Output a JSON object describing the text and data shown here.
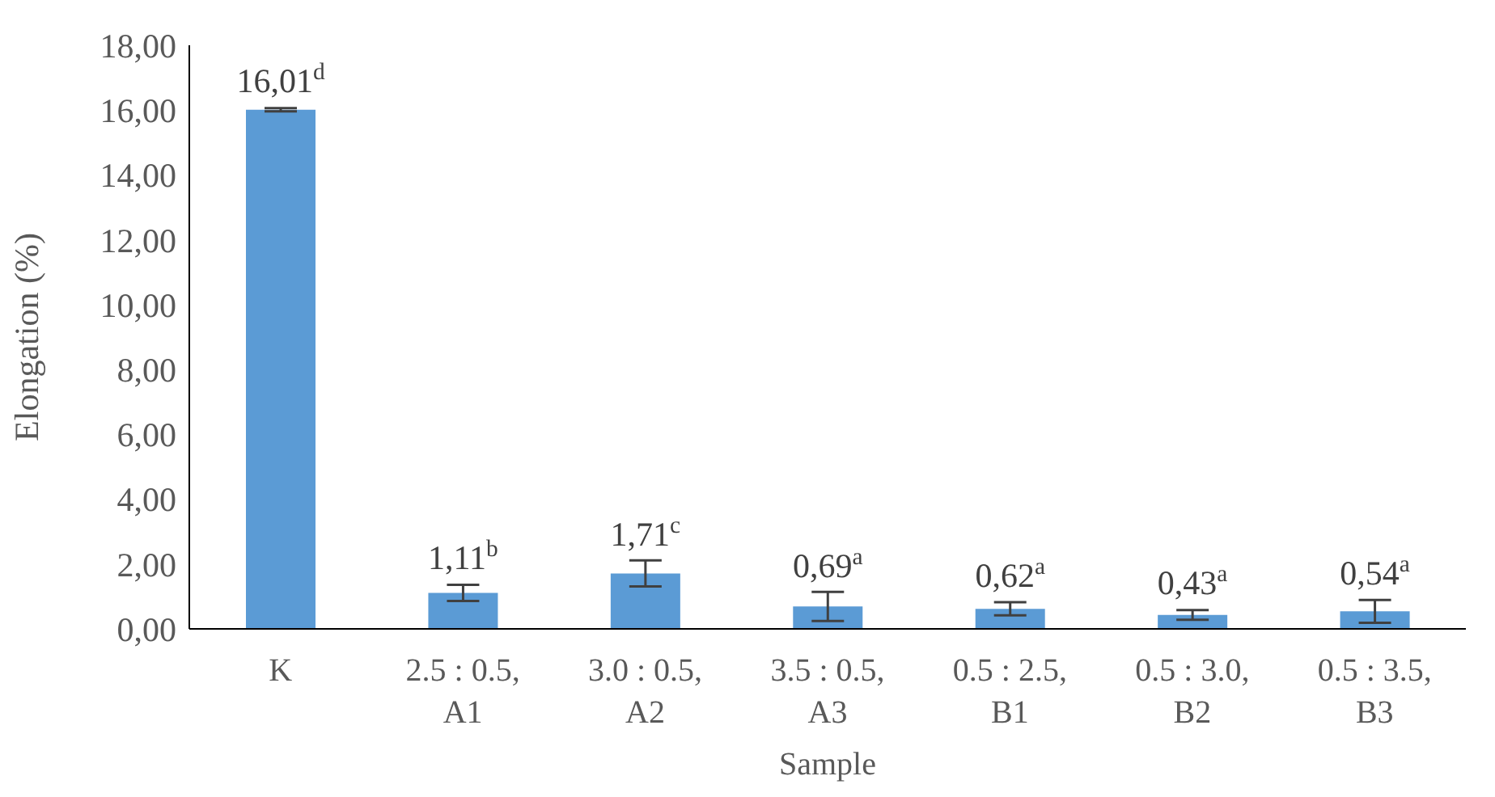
{
  "chart_data": {
    "type": "bar",
    "xlabel": "Sample",
    "ylabel": "Elongation (%)",
    "categories": [
      "K",
      "2.5 : 0.5, A1",
      "3.0 : 0.5, A2",
      "3.5 : 0.5, A3",
      "0.5 : 2.5, B1",
      "0.5 : 3.0, B2",
      "0.5 : 3.5, B3"
    ],
    "values": [
      16.01,
      1.11,
      1.71,
      0.69,
      0.62,
      0.43,
      0.54
    ],
    "errors": [
      0.05,
      0.25,
      0.4,
      0.45,
      0.2,
      0.15,
      0.35
    ],
    "value_labels": [
      "16,01$^{d}$",
      "1,11$^{b}$",
      "1,71$^{c}$",
      "0,69$^{a}$",
      "0,62$^{a}$",
      "0,43$^{a}$",
      "0,54$^{a}$"
    ],
    "color": "#5b9bd5",
    "ylim": [
      0,
      18
    ],
    "yticks": [
      {
        "value": 0,
        "label": "0,00"
      },
      {
        "value": 2,
        "label": "2,00"
      },
      {
        "value": 4,
        "label": "4,00"
      },
      {
        "value": 6,
        "label": "6,00"
      },
      {
        "value": 8,
        "label": "8,00"
      },
      {
        "value": 10,
        "label": "10,00"
      },
      {
        "value": 12,
        "label": "12,00"
      },
      {
        "value": 14,
        "label": "14,00"
      },
      {
        "value": 16,
        "label": "16,00"
      },
      {
        "value": 18,
        "label": "18,00"
      }
    ],
    "grid": false,
    "legend": false
  }
}
